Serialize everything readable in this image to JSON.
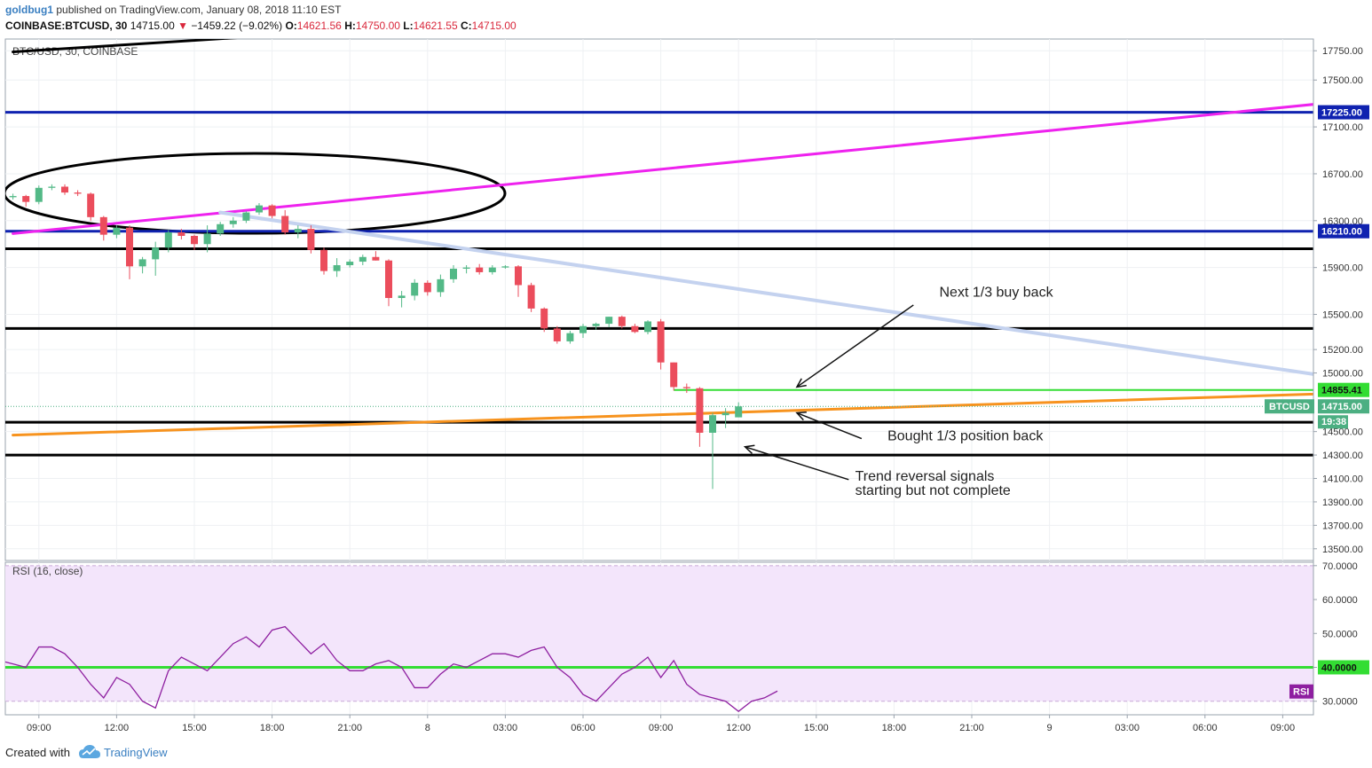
{
  "header": {
    "user": "goldbug1",
    "published": "published on TradingView.com, January 08, 2018 11:10 EST",
    "symbol": "COINBASE:BTCUSD, 30",
    "last": "14715.00",
    "change": "−1459.22 (−9.02%)",
    "o_label": "O:",
    "o_value": "14621.56",
    "h_label": "H:",
    "h_value": "14750.00",
    "l_label": "L:",
    "l_value": "14621.55",
    "c_label": "C:",
    "c_value": "14715.00"
  },
  "footer": {
    "created_with": "Created with",
    "brand": "TradingView"
  },
  "chart_data": {
    "type": "candlestick",
    "title": "BTC/USD, 30, COINBASE",
    "y_range": [
      13400,
      17850
    ],
    "price_ticks": [
      17750,
      17500,
      17100,
      16700,
      16300,
      15900,
      15500,
      15200,
      15000,
      14500,
      14300,
      14100,
      13900,
      13700,
      13500
    ],
    "x_labels": [
      {
        "label": "09:00",
        "i": 2
      },
      {
        "label": "12:00",
        "i": 8
      },
      {
        "label": "15:00",
        "i": 14
      },
      {
        "label": "18:00",
        "i": 20
      },
      {
        "label": "21:00",
        "i": 26
      },
      {
        "label": "8",
        "i": 32
      },
      {
        "label": "03:00",
        "i": 38
      },
      {
        "label": "06:00",
        "i": 44
      },
      {
        "label": "09:00",
        "i": 50
      },
      {
        "label": "12:00",
        "i": 56
      },
      {
        "label": "15:00",
        "i": 62
      },
      {
        "label": "18:00",
        "i": 68
      },
      {
        "label": "21:00",
        "i": 74
      },
      {
        "label": "9",
        "i": 80
      },
      {
        "label": "03:00",
        "i": 86
      },
      {
        "label": "06:00",
        "i": 92
      },
      {
        "label": "09:00",
        "i": 98
      }
    ],
    "candles": [
      [
        16500,
        16530,
        16480,
        16510
      ],
      [
        16510,
        16520,
        16420,
        16460
      ],
      [
        16460,
        16600,
        16440,
        16580
      ],
      [
        16580,
        16610,
        16560,
        16590
      ],
      [
        16590,
        16610,
        16520,
        16540
      ],
      [
        16540,
        16560,
        16510,
        16530
      ],
      [
        16530,
        16540,
        16300,
        16330
      ],
      [
        16330,
        16340,
        16130,
        16180
      ],
      [
        16180,
        16260,
        16150,
        16240
      ],
      [
        16240,
        16260,
        15800,
        15910
      ],
      [
        15910,
        15990,
        15850,
        15970
      ],
      [
        15970,
        16120,
        15830,
        16070
      ],
      [
        16070,
        16220,
        16030,
        16200
      ],
      [
        16200,
        16230,
        16140,
        16170
      ],
      [
        16170,
        16180,
        16050,
        16100
      ],
      [
        16100,
        16260,
        16030,
        16190
      ],
      [
        16190,
        16290,
        16170,
        16270
      ],
      [
        16270,
        16330,
        16240,
        16300
      ],
      [
        16300,
        16380,
        16280,
        16370
      ],
      [
        16370,
        16450,
        16350,
        16430
      ],
      [
        16430,
        16440,
        16320,
        16340
      ],
      [
        16340,
        16390,
        16180,
        16200
      ],
      [
        16200,
        16260,
        16150,
        16230
      ],
      [
        16230,
        16260,
        16020,
        16050
      ],
      [
        16050,
        16070,
        15840,
        15870
      ],
      [
        15870,
        15980,
        15820,
        15920
      ],
      [
        15920,
        15970,
        15900,
        15950
      ],
      [
        15950,
        16010,
        15920,
        15990
      ],
      [
        15990,
        16040,
        15960,
        15960
      ],
      [
        15960,
        15970,
        15570,
        15640
      ],
      [
        15640,
        15700,
        15560,
        15660
      ],
      [
        15660,
        15800,
        15620,
        15770
      ],
      [
        15770,
        15790,
        15660,
        15690
      ],
      [
        15690,
        15840,
        15650,
        15800
      ],
      [
        15800,
        15920,
        15770,
        15890
      ],
      [
        15890,
        15920,
        15850,
        15900
      ],
      [
        15900,
        15930,
        15840,
        15860
      ],
      [
        15860,
        15920,
        15840,
        15900
      ],
      [
        15900,
        15920,
        15890,
        15910
      ],
      [
        15910,
        15920,
        15650,
        15750
      ],
      [
        15750,
        15770,
        15520,
        15550
      ],
      [
        15550,
        15560,
        15350,
        15380
      ],
      [
        15380,
        15400,
        15250,
        15270
      ],
      [
        15270,
        15360,
        15250,
        15340
      ],
      [
        15340,
        15420,
        15300,
        15400
      ],
      [
        15400,
        15430,
        15370,
        15420
      ],
      [
        15420,
        15480,
        15390,
        15480
      ],
      [
        15480,
        15490,
        15380,
        15400
      ],
      [
        15400,
        15420,
        15340,
        15350
      ],
      [
        15350,
        15450,
        15330,
        15440
      ],
      [
        15440,
        15460,
        15030,
        15090
      ],
      [
        15090,
        15090,
        14850,
        14880
      ],
      [
        14880,
        14910,
        14830,
        14870
      ],
      [
        14870,
        14880,
        14370,
        14490
      ],
      [
        14490,
        14660,
        14010,
        14640
      ],
      [
        14640,
        14700,
        14530,
        14660
      ],
      [
        14621.56,
        14750,
        14621.55,
        14715
      ]
    ],
    "levels": [
      {
        "price": 17225,
        "color": "#0f22b0",
        "label": "17225.00"
      },
      {
        "price": 16210,
        "color": "#0f22b0",
        "label": "16210.00"
      },
      {
        "price": 16060,
        "color": "#000000"
      },
      {
        "price": 15380,
        "color": "#000000"
      },
      {
        "price": 14580,
        "color": "#000000"
      },
      {
        "price": 14300,
        "color": "#000000"
      },
      {
        "price": 14855.41,
        "color": "#33dd33",
        "label": "14855.41",
        "from_i": 51
      }
    ],
    "last_price": {
      "symbol": "BTCUSD",
      "value": "14715.00",
      "countdown": "19:38",
      "color": "#4caf82"
    },
    "trendlines": [
      {
        "name": "magenta",
        "color": "#ee22ee",
        "from": [
          0,
          16190
        ],
        "to": [
          112,
          17420
        ]
      },
      {
        "name": "light-blue",
        "color": "#c4d2ef",
        "from": [
          16,
          16370
        ],
        "to": [
          112,
          14800
        ]
      },
      {
        "name": "orange",
        "color": "#f7931e",
        "from": [
          0,
          14470
        ],
        "to": [
          112,
          14860
        ]
      },
      {
        "name": "black-top",
        "color": "#000000",
        "from": [
          0,
          17740
        ],
        "to": [
          30,
          17950
        ]
      }
    ],
    "annotations": [
      {
        "text": "Next 1/3 buy back",
        "i": 71.5,
        "p": 15650,
        "arrow_from": [
          69.5,
          15580
        ],
        "arrow_to": [
          60.5,
          14880
        ]
      },
      {
        "text": "Bought 1/3 position back",
        "i": 67.5,
        "p": 14425,
        "arrow_from": [
          65.5,
          14440
        ],
        "arrow_to": [
          60.5,
          14660
        ]
      },
      {
        "text": "Trend reversal signals",
        "text2": "starting but not complete",
        "i": 65,
        "p": 14080,
        "arrow_from": [
          64.5,
          14090
        ],
        "arrow_to": [
          56.5,
          14370
        ]
      }
    ],
    "rsi": {
      "title": "RSI (16, close)",
      "badge": "RSI",
      "range": [
        26,
        71
      ],
      "ticks": [
        70,
        60,
        50,
        40,
        30
      ],
      "level_line": {
        "value": 40,
        "label": "40.0000"
      },
      "band": [
        30,
        70
      ],
      "values": [
        42,
        41,
        40,
        46,
        46,
        44,
        40,
        35,
        31,
        37,
        35,
        30,
        28,
        39,
        43,
        41,
        39,
        43,
        47,
        49,
        46,
        51,
        52,
        48,
        44,
        47,
        42,
        39,
        39,
        41,
        42,
        40,
        34,
        34,
        38,
        41,
        40,
        42,
        44,
        44,
        43,
        45,
        46,
        40,
        37,
        32,
        30,
        34,
        38,
        40,
        43,
        37,
        42,
        35,
        32,
        31,
        30,
        27,
        30,
        31,
        33
      ]
    }
  }
}
